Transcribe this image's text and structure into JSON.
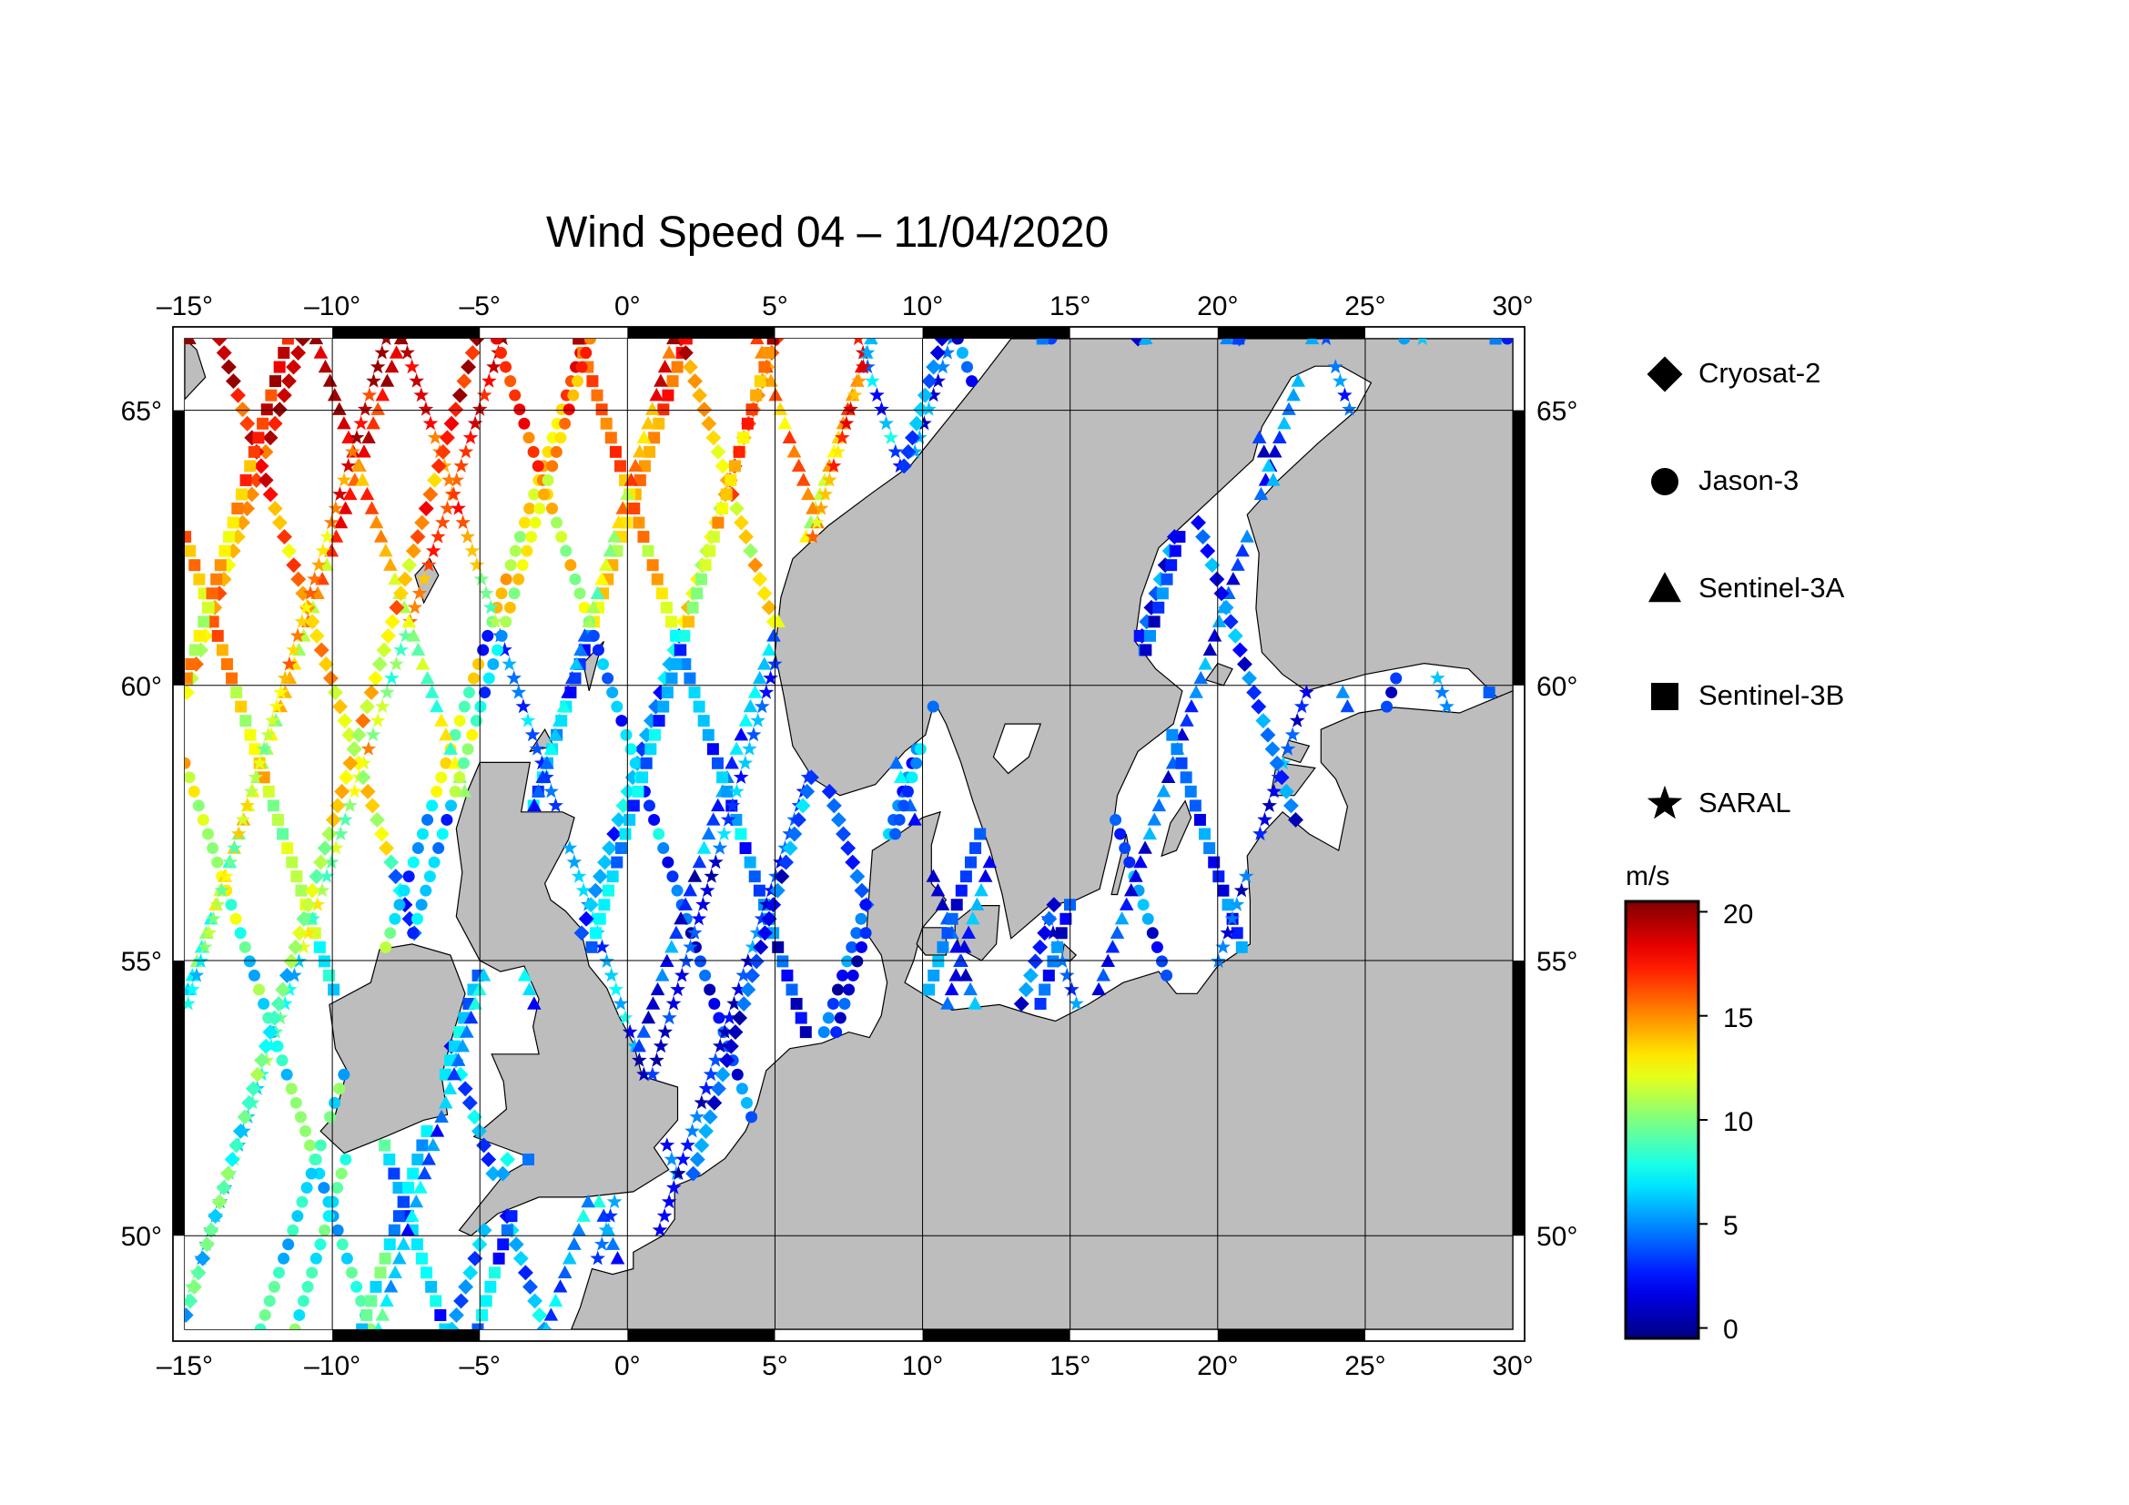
{
  "title": "Wind Speed 04 – 11/04/2020",
  "map": {
    "lon_range": [
      -15,
      30
    ],
    "lat_range": [
      48.3,
      66.3
    ],
    "lon_ticks": [
      "–15°",
      "–10°",
      "–5°",
      "0°",
      "5°",
      "10°",
      "15°",
      "20°",
      "25°",
      "30°"
    ],
    "lat_ticks": [
      "50°",
      "55°",
      "60°",
      "65°"
    ],
    "colors": {
      "land": "#bdbdbd",
      "sea": "#ffffff",
      "grid": "#000000",
      "coast": "#000000"
    }
  },
  "legend": {
    "items": [
      {
        "label": "Cryosat-2",
        "symbol": "diamond"
      },
      {
        "label": "Jason-3",
        "symbol": "circle"
      },
      {
        "label": "Sentinel-3A",
        "symbol": "triangle"
      },
      {
        "label": "Sentinel-3B",
        "symbol": "square"
      },
      {
        "label": "SARAL",
        "symbol": "star"
      }
    ]
  },
  "colorbar": {
    "unit": "m/s",
    "ticks": [
      "0",
      "5",
      "10",
      "15",
      "20"
    ],
    "range": [
      -0.5,
      20.5
    ],
    "colormap": "jet"
  }
}
